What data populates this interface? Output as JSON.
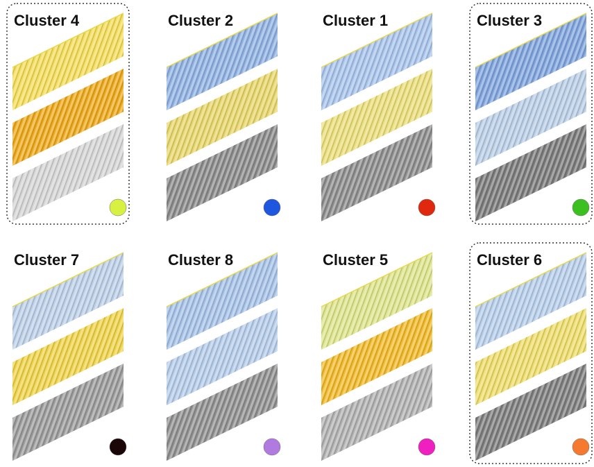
{
  "panels": [
    {
      "title": "Cluster 4",
      "framed": true,
      "dot_color": "#d8f040",
      "stripes": [
        "#f2dc5a",
        "#eba81a",
        "#d4d4d4"
      ]
    },
    {
      "title": "Cluster 2",
      "framed": false,
      "dot_color": "#1f56e0",
      "stripes": [
        "#8fb0e0",
        "#e6d56a",
        "#8a8a8a"
      ]
    },
    {
      "title": "Cluster 1",
      "framed": false,
      "dot_color": "#e0280f",
      "stripes": [
        "#a8c3ea",
        "#e9dd7a",
        "#8c8c8c"
      ]
    },
    {
      "title": "Cluster 3",
      "framed": true,
      "dot_color": "#3cc020",
      "stripes": [
        "#7fa3dc",
        "#b9cde4",
        "#7a7a7a"
      ]
    },
    {
      "title": "Cluster 7",
      "framed": false,
      "dot_color": "#1a0606",
      "stripes": [
        "#bccfe6",
        "#eed24a",
        "#9a9a9a"
      ]
    },
    {
      "title": "Cluster 8",
      "framed": false,
      "dot_color": "#b07ae0",
      "stripes": [
        "#a6c1e6",
        "#b4cbe8",
        "#8f8f8f"
      ]
    },
    {
      "title": "Cluster 5",
      "framed": false,
      "dot_color": "#f020c0",
      "stripes": [
        "#dce38a",
        "#efb92a",
        "#b0b0b0"
      ]
    },
    {
      "title": "Cluster 6",
      "framed": true,
      "dot_color": "#f57a30",
      "stripes": [
        "#b6cde8",
        "#ecdc6a",
        "#7d7d7d"
      ]
    }
  ]
}
